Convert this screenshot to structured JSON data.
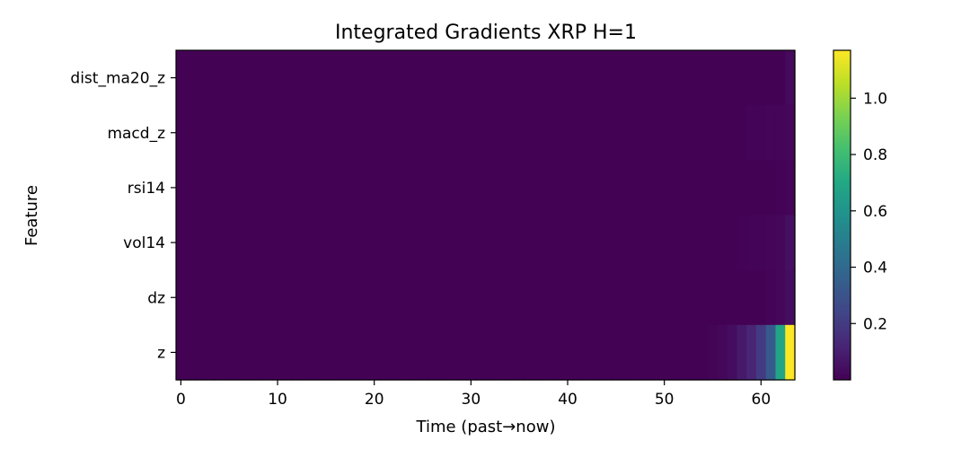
{
  "chart_data": {
    "type": "heatmap",
    "title": "Integrated Gradients XRP H=1",
    "xlabel": "Time (past→now)",
    "ylabel": "Feature",
    "features": [
      "dist_ma20_z",
      "macd_z",
      "rsi14",
      "vol14",
      "dz",
      "z"
    ],
    "time_steps": 64,
    "xticks": [
      0,
      10,
      20,
      30,
      40,
      50,
      60
    ],
    "xlim": [
      -0.5,
      63.5
    ],
    "colorbar": {
      "min": 0.0,
      "max": 1.17,
      "ticks": [
        0.2,
        0.4,
        0.6,
        0.8,
        1.0
      ],
      "tick_labels": [
        "0.2",
        "0.4",
        "0.6",
        "0.8",
        "1.0"
      ],
      "colormap": "viridis"
    },
    "background_value": 0.005,
    "nonzero_cells": [
      {
        "feature": "dist_ma20_z",
        "t": 63,
        "value": 0.03
      },
      {
        "feature": "macd_z",
        "t": 59,
        "value": 0.01
      },
      {
        "feature": "macd_z",
        "t": 60,
        "value": 0.012
      },
      {
        "feature": "macd_z",
        "t": 61,
        "value": 0.015
      },
      {
        "feature": "macd_z",
        "t": 62,
        "value": 0.018
      },
      {
        "feature": "macd_z",
        "t": 63,
        "value": 0.02
      },
      {
        "feature": "rsi14",
        "t": 62,
        "value": 0.008
      },
      {
        "feature": "rsi14",
        "t": 63,
        "value": 0.01
      },
      {
        "feature": "vol14",
        "t": 58,
        "value": 0.008
      },
      {
        "feature": "vol14",
        "t": 59,
        "value": 0.01
      },
      {
        "feature": "vol14",
        "t": 60,
        "value": 0.012
      },
      {
        "feature": "vol14",
        "t": 61,
        "value": 0.015
      },
      {
        "feature": "vol14",
        "t": 62,
        "value": 0.02
      },
      {
        "feature": "vol14",
        "t": 63,
        "value": 0.05
      },
      {
        "feature": "dz",
        "t": 61,
        "value": 0.01
      },
      {
        "feature": "dz",
        "t": 62,
        "value": 0.02
      },
      {
        "feature": "dz",
        "t": 63,
        "value": 0.04
      },
      {
        "feature": "z",
        "t": 55,
        "value": 0.012
      },
      {
        "feature": "z",
        "t": 56,
        "value": 0.02
      },
      {
        "feature": "z",
        "t": 57,
        "value": 0.04
      },
      {
        "feature": "z",
        "t": 58,
        "value": 0.08
      },
      {
        "feature": "z",
        "t": 59,
        "value": 0.12
      },
      {
        "feature": "z",
        "t": 60,
        "value": 0.2
      },
      {
        "feature": "z",
        "t": 61,
        "value": 0.33
      },
      {
        "feature": "z",
        "t": 62,
        "value": 0.68
      },
      {
        "feature": "z",
        "t": 63,
        "value": 1.17
      }
    ]
  }
}
